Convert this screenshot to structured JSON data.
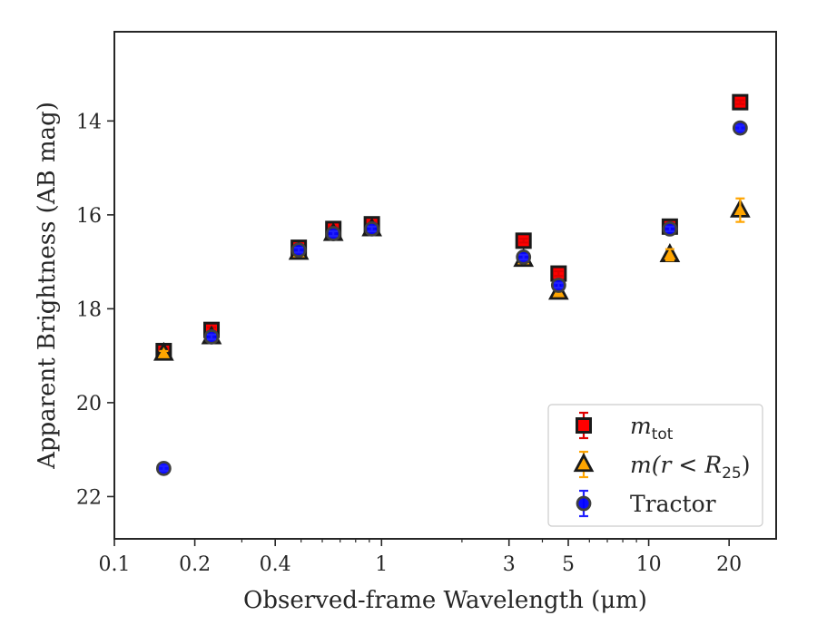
{
  "chart_data": {
    "type": "scatter",
    "xlabel": "Observed-frame Wavelength (μm)",
    "ylabel": "Apparent Brightness (AB mag)",
    "xscale": "log",
    "xlim": [
      0.1,
      30
    ],
    "ylim": [
      22.9,
      12.1
    ],
    "y_inverted": true,
    "grid": false,
    "legend_position": "lower-right",
    "xticks": [
      {
        "value": 0.1,
        "label": "0.1"
      },
      {
        "value": 0.2,
        "label": "0.2"
      },
      {
        "value": 0.4,
        "label": "0.4"
      },
      {
        "value": 1,
        "label": "1"
      },
      {
        "value": 3,
        "label": "3"
      },
      {
        "value": 5,
        "label": "5"
      },
      {
        "value": 10,
        "label": "10"
      },
      {
        "value": 20,
        "label": "20"
      }
    ],
    "yticks": [
      {
        "value": 14,
        "label": "14"
      },
      {
        "value": 16,
        "label": "16"
      },
      {
        "value": 18,
        "label": "18"
      },
      {
        "value": 20,
        "label": "20"
      },
      {
        "value": 22,
        "label": "22"
      }
    ],
    "series": [
      {
        "name": "m_tot",
        "legend_label": {
          "main": "m",
          "sub": "tot"
        },
        "marker": "square",
        "color": "#ff0000",
        "edge": "#1a1a1a",
        "errcolor": "#e00000",
        "points": [
          {
            "x": 0.153,
            "y": 18.9,
            "err": 0.05
          },
          {
            "x": 0.231,
            "y": 18.45,
            "err": 0.05
          },
          {
            "x": 0.49,
            "y": 16.7,
            "err": 0.05
          },
          {
            "x": 0.66,
            "y": 16.3,
            "err": 0.05
          },
          {
            "x": 0.92,
            "y": 16.2,
            "err": 0.05
          },
          {
            "x": 3.4,
            "y": 16.55,
            "err": 0.04
          },
          {
            "x": 4.6,
            "y": 17.25,
            "err": 0.05
          },
          {
            "x": 12.0,
            "y": 16.25,
            "err": 0.04
          },
          {
            "x": 22.0,
            "y": 13.6,
            "err": 0.04
          }
        ]
      },
      {
        "name": "m(r < R_25)",
        "legend_label": {
          "main": "m(r < R",
          "sub": "25",
          "close": ")"
        },
        "marker": "triangle",
        "color": "#ffa500",
        "edge": "#1a1a1a",
        "errcolor": "#ffa500",
        "points": [
          {
            "x": 0.153,
            "y": 18.95,
            "err": 0.05
          },
          {
            "x": 0.231,
            "y": 18.6,
            "err": 0.05
          },
          {
            "x": 0.49,
            "y": 16.8,
            "err": 0.05
          },
          {
            "x": 0.66,
            "y": 16.4,
            "err": 0.05
          },
          {
            "x": 0.92,
            "y": 16.3,
            "err": 0.05
          },
          {
            "x": 3.4,
            "y": 16.95,
            "err": 0.05
          },
          {
            "x": 4.6,
            "y": 17.65,
            "err": 0.06
          },
          {
            "x": 12.0,
            "y": 16.85,
            "err": 0.12
          },
          {
            "x": 22.0,
            "y": 15.9,
            "err": 0.25
          }
        ]
      },
      {
        "name": "Tractor",
        "legend_label": {
          "main": "Tractor"
        },
        "marker": "circle",
        "color": "#0000ff",
        "edge": "#404040",
        "errcolor": "#2020ff",
        "points": [
          {
            "x": 0.153,
            "y": 21.4,
            "err": 0.05
          },
          {
            "x": 0.231,
            "y": 18.6,
            "err": 0.05
          },
          {
            "x": 0.49,
            "y": 16.75,
            "err": 0.05
          },
          {
            "x": 0.66,
            "y": 16.4,
            "err": 0.05
          },
          {
            "x": 0.92,
            "y": 16.3,
            "err": 0.05
          },
          {
            "x": 3.4,
            "y": 16.9,
            "err": 0.05
          },
          {
            "x": 4.6,
            "y": 17.5,
            "err": 0.05
          },
          {
            "x": 12.0,
            "y": 16.3,
            "err": 0.05
          },
          {
            "x": 22.0,
            "y": 14.15,
            "err": 0.05
          }
        ]
      }
    ]
  }
}
